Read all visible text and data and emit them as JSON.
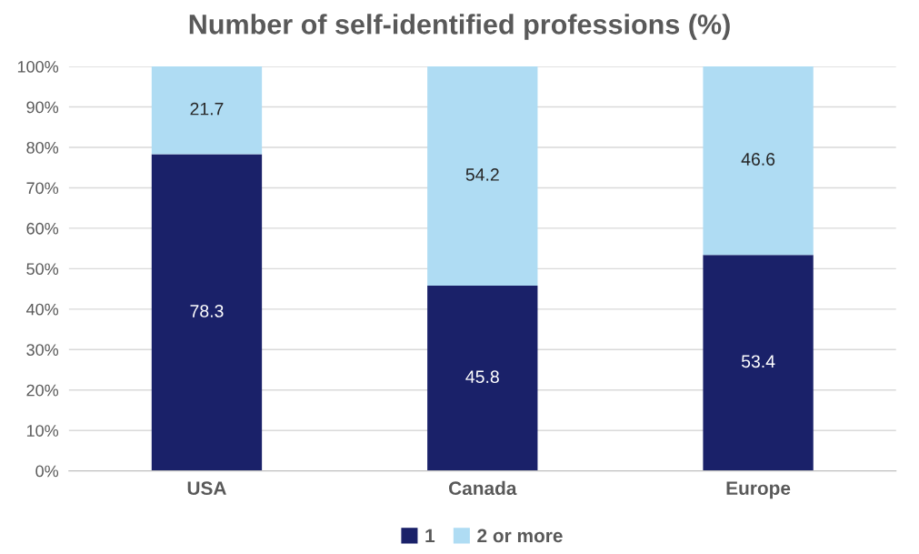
{
  "chart_data": {
    "type": "bar",
    "title": "Number of self-identified professions (%)",
    "categories": [
      "USA",
      "Canada",
      "Europe"
    ],
    "stacked": true,
    "series": [
      {
        "name": "1",
        "color": "#1a2169",
        "values": [
          78.3,
          45.8,
          53.4
        ]
      },
      {
        "name": "2 or more",
        "color": "#afdcf3",
        "values": [
          21.7,
          54.2,
          46.6
        ]
      }
    ],
    "ylim": [
      0,
      100
    ],
    "yticks": [
      {
        "value": 0,
        "label": "0%"
      },
      {
        "value": 10,
        "label": "10%"
      },
      {
        "value": 20,
        "label": "20%"
      },
      {
        "value": 30,
        "label": "30%"
      },
      {
        "value": 40,
        "label": "40%"
      },
      {
        "value": 50,
        "label": "50%"
      },
      {
        "value": 60,
        "label": "60%"
      },
      {
        "value": 70,
        "label": "70%"
      },
      {
        "value": 80,
        "label": "80%"
      },
      {
        "value": 90,
        "label": "90%"
      },
      {
        "value": 100,
        "label": "100%"
      }
    ],
    "grid": "y",
    "legend": "bottom",
    "data_labels": true
  }
}
